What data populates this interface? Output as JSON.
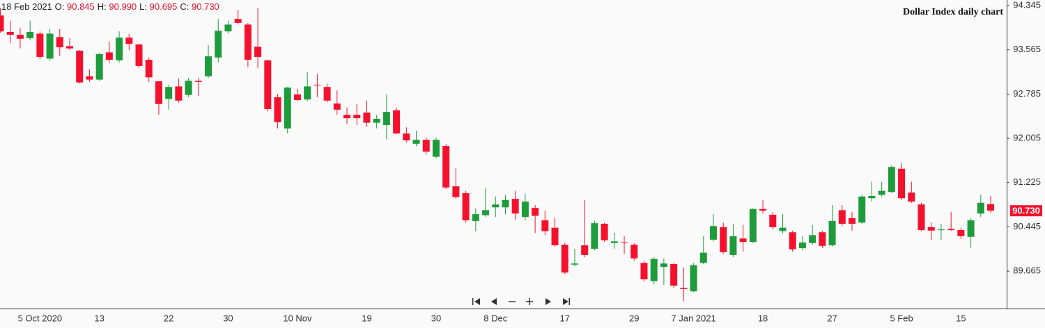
{
  "chart_data": {
    "type": "candlestick",
    "title": "Dollar Index daily chart",
    "header": {
      "date": "18 Feb 2021",
      "fields": [
        {
          "label": "O:",
          "value": "90.845"
        },
        {
          "label": "H:",
          "value": "90.990"
        },
        {
          "label": "L:",
          "value": "90.695"
        },
        {
          "label": "C:",
          "value": "90.730"
        }
      ]
    },
    "last_price_label": "90.730",
    "categories": [
      null,
      null,
      null,
      null,
      "5 Oct 2020",
      null,
      null,
      null,
      null,
      null,
      "13",
      null,
      null,
      null,
      null,
      null,
      null,
      "22",
      null,
      null,
      null,
      null,
      null,
      "30",
      null,
      null,
      null,
      null,
      null,
      null,
      "10 Nov",
      null,
      null,
      null,
      null,
      null,
      null,
      "19",
      null,
      null,
      null,
      null,
      null,
      null,
      "30",
      null,
      null,
      null,
      null,
      null,
      "8 Dec",
      null,
      null,
      null,
      null,
      null,
      null,
      "17",
      null,
      null,
      null,
      null,
      null,
      null,
      "29",
      null,
      null,
      null,
      null,
      null,
      "7 Jan 2021",
      null,
      null,
      null,
      null,
      null,
      null,
      "18",
      null,
      null,
      null,
      null,
      null,
      null,
      "27",
      null,
      null,
      null,
      null,
      null,
      null,
      "5 Feb",
      null,
      null,
      null,
      null,
      null,
      "15",
      null,
      null,
      null
    ],
    "open": [
      94.17,
      93.88,
      93.83,
      93.77,
      93.85,
      93.41,
      93.79,
      93.63,
      93.55,
      93.1,
      93.04,
      93.52,
      93.38,
      93.78,
      93.66,
      93.39,
      93.01,
      92.7,
      92.92,
      92.77,
      93.02,
      93.1,
      93.43,
      93.89,
      94.11,
      94.01,
      93.62,
      93.38,
      92.73,
      92.18,
      92.78,
      92.69,
      92.95,
      92.91,
      92.62,
      92.42,
      92.42,
      92.46,
      92.28,
      92.24,
      92.5,
      92.09,
      91.91,
      91.98,
      91.68,
      91.87,
      91.16,
      91.04,
      90.55,
      90.65,
      90.79,
      90.79,
      90.94,
      90.62,
      90.78,
      90.56,
      90.43,
      90.13,
      89.78,
      90.12,
      90.06,
      90.5,
      90.16,
      90.17,
      90.13,
      89.81,
      89.49,
      89.74,
      89.79,
      89.37,
      89.31,
      89.81,
      90.22,
      90.44,
      89.95,
      90.24,
      90.18,
      90.76,
      90.66,
      90.37,
      90.35,
      90.07,
      90.16,
      90.35,
      90.12,
      90.74,
      90.6,
      90.52,
      90.95,
      91.01,
      91.06,
      91.47,
      91.05,
      90.84,
      90.44,
      90.39,
      90.41,
      90.39,
      90.27,
      90.68,
      90.845
    ],
    "high": [
      94.3,
      94.08,
      93.95,
      94.08,
      93.89,
      93.93,
      93.93,
      93.77,
      93.56,
      93.22,
      93.51,
      93.71,
      93.89,
      93.85,
      93.67,
      93.43,
      93.02,
      92.95,
      93.06,
      93.07,
      93.07,
      93.65,
      94.11,
      94.08,
      94.27,
      94.04,
      94.3,
      93.39,
      92.79,
      92.91,
      92.88,
      93.18,
      93.14,
      92.97,
      92.85,
      92.55,
      92.61,
      92.67,
      92.42,
      92.78,
      92.55,
      92.2,
      92.14,
      92.02,
      92.02,
      91.9,
      91.48,
      91.08,
      90.77,
      91.14,
      90.98,
      91.01,
      91.08,
      91.03,
      90.83,
      90.73,
      90.61,
      90.16,
      90.06,
      90.92,
      90.55,
      90.52,
      90.34,
      90.28,
      90.16,
      89.85,
      89.91,
      89.89,
      89.81,
      89.73,
      89.81,
      90.28,
      90.67,
      90.52,
      90.5,
      90.48,
      90.77,
      90.92,
      90.71,
      90.67,
      90.38,
      90.28,
      90.48,
      90.38,
      90.83,
      90.83,
      90.71,
      91.01,
      91.24,
      91.24,
      91.53,
      91.57,
      91.24,
      90.87,
      90.52,
      90.5,
      90.71,
      90.43,
      90.6,
      91.01,
      90.99
    ],
    "low": [
      93.87,
      93.68,
      93.59,
      93.73,
      93.4,
      93.37,
      93.46,
      93.56,
      92.97,
      93.0,
      93.02,
      93.34,
      93.34,
      93.56,
      93.24,
      93.0,
      92.42,
      92.51,
      92.63,
      92.73,
      92.75,
      93.07,
      93.34,
      93.85,
      94.01,
      93.26,
      93.24,
      92.48,
      92.18,
      92.09,
      92.66,
      92.66,
      92.73,
      92.64,
      92.42,
      92.26,
      92.24,
      92.21,
      92.18,
      91.99,
      92.08,
      91.93,
      91.87,
      91.72,
      91.65,
      91.11,
      90.94,
      90.52,
      90.37,
      90.62,
      90.62,
      90.67,
      90.57,
      90.56,
      90.34,
      90.3,
      90.1,
      89.61,
      89.75,
      89.91,
      90.03,
      90.18,
      90.06,
      89.97,
      89.85,
      89.48,
      89.43,
      89.42,
      89.37,
      89.14,
      89.3,
      89.79,
      90.19,
      89.97,
      89.91,
      90.01,
      90.16,
      90.68,
      90.4,
      90.33,
      90.01,
      90.03,
      90.13,
      90.07,
      90.1,
      90.46,
      90.38,
      90.49,
      90.89,
      90.98,
      91.04,
      90.92,
      90.87,
      90.37,
      90.21,
      90.22,
      90.37,
      90.23,
      90.08,
      90.62,
      90.695
    ],
    "close": [
      93.89,
      93.83,
      93.76,
      93.88,
      93.44,
      93.85,
      93.61,
      93.59,
      92.99,
      93.04,
      93.49,
      93.39,
      93.78,
      93.67,
      93.28,
      93.08,
      92.61,
      92.91,
      92.67,
      93.02,
      93.0,
      93.45,
      93.9,
      94.01,
      94.04,
      93.39,
      93.44,
      92.52,
      92.29,
      92.9,
      92.68,
      92.92,
      92.94,
      92.67,
      92.51,
      92.36,
      92.36,
      92.28,
      92.35,
      92.47,
      92.09,
      91.97,
      91.98,
      91.77,
      91.98,
      91.14,
      90.97,
      90.56,
      90.67,
      90.74,
      90.84,
      90.92,
      90.68,
      90.89,
      90.64,
      90.37,
      90.12,
      89.64,
      89.8,
      89.95,
      90.51,
      90.21,
      90.19,
      90.16,
      89.89,
      89.52,
      89.88,
      89.8,
      89.41,
      89.35,
      89.77,
      89.99,
      90.46,
      90.0,
      90.28,
      90.18,
      90.76,
      90.73,
      90.44,
      90.43,
      90.05,
      90.17,
      90.3,
      90.11,
      90.55,
      90.5,
      90.5,
      90.98,
      90.99,
      91.08,
      91.5,
      90.95,
      90.89,
      90.39,
      90.38,
      90.4,
      90.39,
      90.28,
      90.56,
      90.87,
      90.73
    ],
    "up_color": "#1e9c3c",
    "down_color": "#f5112e",
    "ylim": [
      89.006,
      94.443
    ],
    "yticks": [
      89.665,
      90.445,
      91.225,
      92.005,
      92.785,
      93.565,
      94.345
    ]
  }
}
